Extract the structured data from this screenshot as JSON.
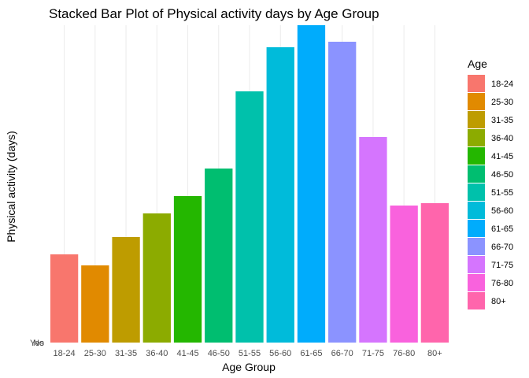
{
  "chart_data": {
    "type": "bar",
    "stacked": true,
    "title": "Stacked Bar Plot of Physical activity days by Age Group",
    "xlabel": "Age Group",
    "ylabel": "Physical activity (days)",
    "y_tick_labels": [
      "No",
      "Yes"
    ],
    "categories": [
      "18-24",
      "25-30",
      "31-35",
      "36-40",
      "41-45",
      "46-50",
      "51-55",
      "56-60",
      "61-65",
      "66-70",
      "71-75",
      "76-80",
      "80+"
    ],
    "values": [
      112,
      98,
      134,
      164,
      186,
      221,
      319,
      375,
      403,
      382,
      261,
      174,
      177
    ],
    "ylim": [
      0,
      403
    ],
    "grid": true,
    "legend": {
      "title": "Age",
      "position": "right",
      "entries": [
        "18-24",
        "25-30",
        "31-35",
        "36-40",
        "41-45",
        "46-50",
        "51-55",
        "56-60",
        "61-65",
        "66-70",
        "71-75",
        "76-80",
        "80+"
      ]
    },
    "colors": [
      "#F8766D",
      "#E18A00",
      "#BE9C00",
      "#8CAB00",
      "#24B700",
      "#00BE70",
      "#00C1AB",
      "#00BBDA",
      "#00ACFC",
      "#8B93FF",
      "#D575FE",
      "#F962DD",
      "#FF65AC"
    ]
  }
}
